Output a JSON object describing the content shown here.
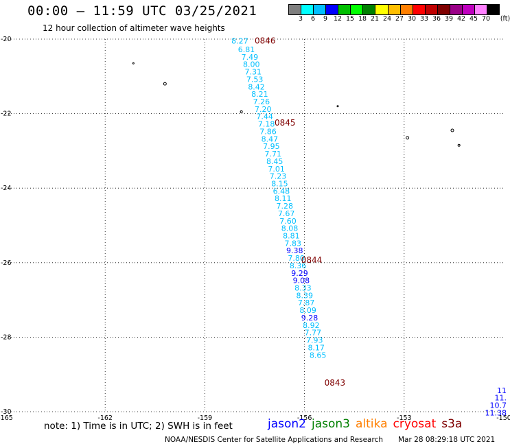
{
  "header": {
    "title": "00:00 – 11:59 UTC 03/25/2021",
    "subtitle": "12 hour collection of altimeter wave heights"
  },
  "legend": {
    "colors": [
      "#7f7f7f",
      "#00ffff",
      "#00bfff",
      "#0000ff",
      "#00bf00",
      "#00ff00",
      "#008000",
      "#ffff00",
      "#ffbf00",
      "#ff7f00",
      "#ff0000",
      "#bf0000",
      "#7f0000",
      "#9a0088",
      "#bf00bf",
      "#ff80ff",
      "#000000"
    ],
    "labels": [
      "3",
      "6",
      "9",
      "12",
      "15",
      "18",
      "21",
      "24",
      "27",
      "30",
      "33",
      "36",
      "39",
      "42",
      "45",
      "70",
      "(ft)"
    ]
  },
  "map": {
    "lon_range": [
      -165,
      -150
    ],
    "lat_range": [
      -30,
      -20
    ],
    "x_ticks": [
      "-165",
      "-162",
      "-159",
      "-156",
      "-153",
      "-150"
    ],
    "y_ticks": [
      "-20",
      "-22",
      "-24",
      "-26",
      "-28",
      "-30"
    ],
    "islands": [
      {
        "lon": -161.15,
        "lat": -20.65,
        "r": 1
      },
      {
        "lon": -160.2,
        "lat": -21.2,
        "r": 2
      },
      {
        "lon": -157.9,
        "lat": -21.95,
        "r": 1.5
      },
      {
        "lon": -155.0,
        "lat": -21.8,
        "r": 1
      },
      {
        "lon": -152.9,
        "lat": -22.65,
        "r": 2
      },
      {
        "lon": -151.55,
        "lat": -22.45,
        "r": 2
      },
      {
        "lon": -151.35,
        "lat": -22.85,
        "r": 1.5
      }
    ],
    "track_labels": [
      {
        "value": "8.27",
        "color": "#00bfff",
        "lon": -158.2,
        "lat": -20.12
      },
      {
        "value": "6.81",
        "color": "#00bfff",
        "lon": -158.0,
        "lat": -20.35
      },
      {
        "value": "7.49",
        "color": "#00bfff",
        "lon": -157.9,
        "lat": -20.55
      },
      {
        "value": "8.00",
        "color": "#00bfff",
        "lon": -157.85,
        "lat": -20.75
      },
      {
        "value": "7.31",
        "color": "#00bfff",
        "lon": -157.8,
        "lat": -20.95
      },
      {
        "value": "7.53",
        "color": "#00bfff",
        "lon": -157.75,
        "lat": -21.15
      },
      {
        "value": "8.42",
        "color": "#00bfff",
        "lon": -157.7,
        "lat": -21.35
      },
      {
        "value": "8.21",
        "color": "#00bfff",
        "lon": -157.6,
        "lat": -21.55
      },
      {
        "value": "7.26",
        "color": "#00bfff",
        "lon": -157.55,
        "lat": -21.75
      },
      {
        "value": "7.20",
        "color": "#00bfff",
        "lon": -157.5,
        "lat": -21.95
      },
      {
        "value": "7.44",
        "color": "#00bfff",
        "lon": -157.45,
        "lat": -22.15
      },
      {
        "value": "7.18",
        "color": "#00bfff",
        "lon": -157.4,
        "lat": -22.35
      },
      {
        "value": "7.86",
        "color": "#00bfff",
        "lon": -157.35,
        "lat": -22.55
      },
      {
        "value": "8.47",
        "color": "#00bfff",
        "lon": -157.3,
        "lat": -22.75
      },
      {
        "value": "7.95",
        "color": "#00bfff",
        "lon": -157.25,
        "lat": -22.95
      },
      {
        "value": "7.71",
        "color": "#00bfff",
        "lon": -157.2,
        "lat": -23.15
      },
      {
        "value": "8.45",
        "color": "#00bfff",
        "lon": -157.15,
        "lat": -23.35
      },
      {
        "value": "7.01",
        "color": "#00bfff",
        "lon": -157.1,
        "lat": -23.55
      },
      {
        "value": "7.23",
        "color": "#00bfff",
        "lon": -157.05,
        "lat": -23.75
      },
      {
        "value": "8.15",
        "color": "#00bfff",
        "lon": -157.0,
        "lat": -23.95
      },
      {
        "value": "6.48",
        "color": "#00bfff",
        "lon": -156.95,
        "lat": -24.15
      },
      {
        "value": "8.11",
        "color": "#00bfff",
        "lon": -156.9,
        "lat": -24.35
      },
      {
        "value": "7.28",
        "color": "#00bfff",
        "lon": -156.85,
        "lat": -24.55
      },
      {
        "value": "7.67",
        "color": "#00bfff",
        "lon": -156.8,
        "lat": -24.75
      },
      {
        "value": "7.60",
        "color": "#00bfff",
        "lon": -156.75,
        "lat": -24.95
      },
      {
        "value": "8.08",
        "color": "#00bfff",
        "lon": -156.7,
        "lat": -25.15
      },
      {
        "value": "8.81",
        "color": "#00bfff",
        "lon": -156.65,
        "lat": -25.35
      },
      {
        "value": "7.83",
        "color": "#00bfff",
        "lon": -156.6,
        "lat": -25.55
      },
      {
        "value": "9.38",
        "color": "#0000ff",
        "lon": -156.55,
        "lat": -25.75
      },
      {
        "value": "7.80",
        "color": "#00bfff",
        "lon": -156.5,
        "lat": -25.95
      },
      {
        "value": "8.36",
        "color": "#00bfff",
        "lon": -156.45,
        "lat": -26.15
      },
      {
        "value": "9.29",
        "color": "#0000ff",
        "lon": -156.4,
        "lat": -26.35
      },
      {
        "value": "9.08",
        "color": "#0000ff",
        "lon": -156.35,
        "lat": -26.55
      },
      {
        "value": "8.33",
        "color": "#00bfff",
        "lon": -156.3,
        "lat": -26.75
      },
      {
        "value": "8.39",
        "color": "#00bfff",
        "lon": -156.25,
        "lat": -26.95
      },
      {
        "value": "7.87",
        "color": "#00bfff",
        "lon": -156.2,
        "lat": -27.15
      },
      {
        "value": "8.09",
        "color": "#00bfff",
        "lon": -156.15,
        "lat": -27.35
      },
      {
        "value": "9.28",
        "color": "#0000ff",
        "lon": -156.1,
        "lat": -27.55
      },
      {
        "value": "8.92",
        "color": "#00bfff",
        "lon": -156.05,
        "lat": -27.75
      },
      {
        "value": "7.77",
        "color": "#00bfff",
        "lon": -156.0,
        "lat": -27.95
      },
      {
        "value": "7.93",
        "color": "#00bfff",
        "lon": -155.95,
        "lat": -28.15
      },
      {
        "value": "8.17",
        "color": "#00bfff",
        "lon": -155.9,
        "lat": -28.35
      },
      {
        "value": "8.65",
        "color": "#00bfff",
        "lon": -155.85,
        "lat": -28.55
      }
    ],
    "time_labels": [
      {
        "value": "0846",
        "lon": -157.5,
        "lat": -20.12
      },
      {
        "value": "0845",
        "lon": -156.9,
        "lat": -22.32
      },
      {
        "value": "0844",
        "lon": -156.1,
        "lat": -26.0
      },
      {
        "value": "0843",
        "lon": -155.4,
        "lat": -29.3
      }
    ],
    "edge_labels": [
      {
        "value": "11",
        "color": "#0000ff",
        "lon": -150.0,
        "lat": -29.5
      },
      {
        "value": "11.",
        "color": "#0000ff",
        "lon": -150.0,
        "lat": -29.7
      },
      {
        "value": "10.7",
        "color": "#0000ff",
        "lon": -150.0,
        "lat": -29.9
      },
      {
        "value": "11.38",
        "color": "#0000ff",
        "lon": -150.0,
        "lat": -30.1
      }
    ]
  },
  "notes": {
    "note": "note: 1) Time is in UTC; 2) SWH is in feet",
    "satellites": [
      {
        "name": "jason2",
        "color": "#0000ff"
      },
      {
        "name": "jason3",
        "color": "#008000"
      },
      {
        "name": "altika",
        "color": "#ff7f00"
      },
      {
        "name": "cryosat",
        "color": "#ff0000"
      },
      {
        "name": "s3a",
        "color": "#7f0000"
      }
    ],
    "credit": "NOAA/NESDIS Center for Satellite Applications and Research",
    "timestamp": "Mar 28 08:29:18 UTC 2021"
  }
}
